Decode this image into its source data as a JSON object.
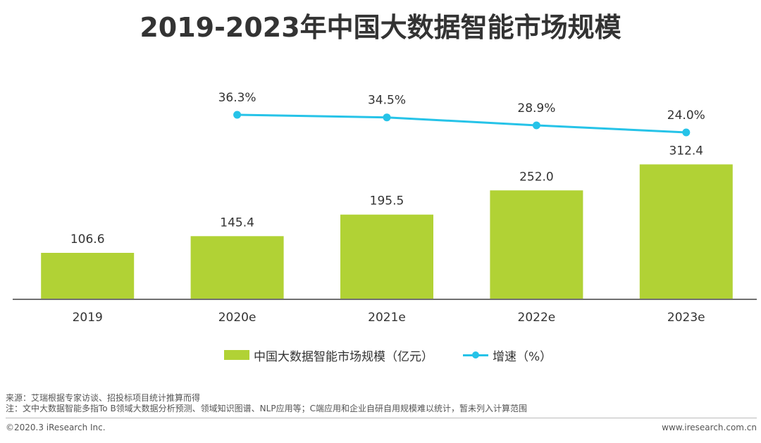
{
  "title": "2019-2023年中国大数据智能市场规模",
  "chart_data": {
    "type": "bar",
    "categories": [
      "2019",
      "2020e",
      "2021e",
      "2022e",
      "2023e"
    ],
    "series": [
      {
        "name": "中国大数据智能市场规模（亿元）",
        "type": "bar",
        "values": [
          106.6,
          145.4,
          195.5,
          252.0,
          312.4
        ],
        "labels": [
          "106.6",
          "145.4",
          "195.5",
          "252.0",
          "312.4"
        ],
        "color": "#b1d235"
      },
      {
        "name": "增速（%）",
        "type": "line",
        "values": [
          null,
          36.3,
          34.5,
          28.9,
          24.0
        ],
        "labels": [
          "",
          "36.3%",
          "34.5%",
          "28.9%",
          "24.0%"
        ],
        "color": "#26c3e8"
      }
    ],
    "xlabel": "",
    "ylabel": "",
    "grid": false,
    "legend_position": "bottom"
  },
  "notes": {
    "source": "来源：艾瑞根据专家访谈、招投标项目统计推算而得",
    "note": "注：文中大数据智能多指To B领域大数据分析预测、领域知识图谱、NLP应用等；C端应用和企业自研自用规模难以统计，暂未列入计算范围"
  },
  "footer": {
    "copyright": "©2020.3 iResearch Inc.",
    "website": "www.iresearch.com.cn"
  }
}
